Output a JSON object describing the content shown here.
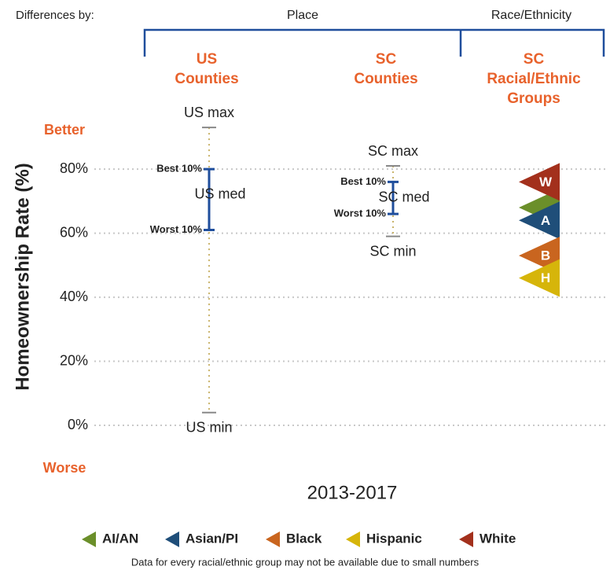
{
  "chart_data": {
    "type": "range",
    "differences_label": "Differences by:",
    "group_headers": [
      "Place",
      "Race/Ethnicity"
    ],
    "columns": [
      [
        "US",
        "Counties"
      ],
      [
        "SC",
        "Counties"
      ],
      [
        "SC",
        "Racial/Ethnic",
        "Groups"
      ]
    ],
    "ylabel": "Homeownership Rate (%)",
    "xlabel": "2013-2017",
    "better": "Better",
    "worse": "Worse",
    "note": "Data for every racial/ethnic group may not be available due to small numbers",
    "ylim": [
      -13,
      95
    ],
    "yticks": [
      {
        "value": 0,
        "label": "0%"
      },
      {
        "value": 20,
        "label": "20%"
      },
      {
        "value": 40,
        "label": "40%"
      },
      {
        "value": 60,
        "label": "60%"
      },
      {
        "value": 80,
        "label": "80%"
      }
    ],
    "grid": true,
    "ranges": [
      {
        "max": 93,
        "min": 4,
        "best10": 80,
        "worst10": 61,
        "med": 72,
        "labels": {
          "max": "US max",
          "min": "US min",
          "med": "US med",
          "best10": "Best 10%",
          "worst10": "Worst 10%"
        }
      },
      {
        "max": 81,
        "min": 59,
        "best10": 76,
        "worst10": 66,
        "med": 71,
        "labels": {
          "max": "SC max",
          "min": "SC min",
          "med": "SC med",
          "best10": "Best 10%",
          "worst10": "Worst 10%"
        }
      }
    ],
    "series": [
      {
        "name": "AI/AN",
        "color": "#6b8f2a",
        "value": 68
      },
      {
        "name": "Asian/PI",
        "color": "#1f4e79",
        "label": "A",
        "value": 64
      },
      {
        "name": "Black",
        "color": "#c9651f",
        "label": "B",
        "value": 53
      },
      {
        "name": "Hispanic",
        "color": "#d6b50a",
        "label": "H",
        "value": 46
      },
      {
        "name": "White",
        "color": "#a3301c",
        "label": "W",
        "value": 76
      }
    ]
  }
}
